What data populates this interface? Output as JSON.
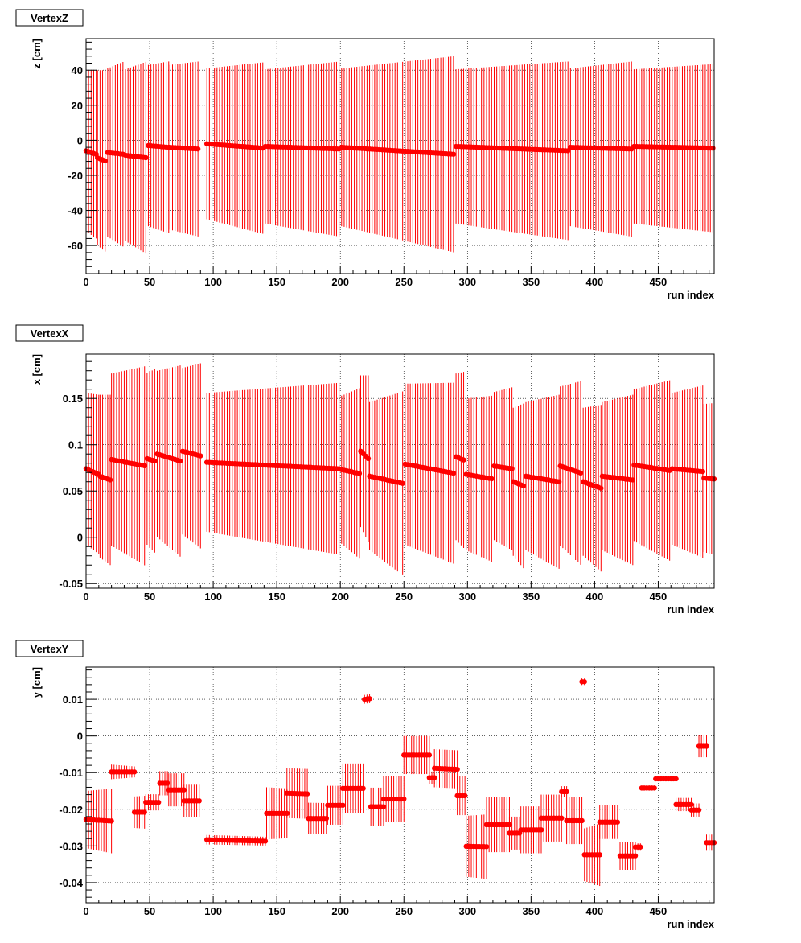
{
  "colors": {
    "marker": "#ff0000",
    "frame": "#000000",
    "grid": "#000000",
    "background": "#ffffff"
  },
  "chart_data": [
    {
      "type": "scatter",
      "title": "VertexZ",
      "xlabel": "run index",
      "ylabel": "z [cm]",
      "xlim": [
        0,
        494
      ],
      "ylim": [
        -76,
        58
      ],
      "x_ticks": [
        0,
        50,
        100,
        150,
        200,
        250,
        300,
        350,
        400,
        450
      ],
      "y_ticks": [
        -60,
        -40,
        -20,
        0,
        20,
        40
      ],
      "grid": true,
      "error_bars": "symmetric",
      "segments": [
        {
          "x": [
            0,
            8
          ],
          "y": [
            -6,
            -8
          ],
          "err": [
            46,
            48
          ]
        },
        {
          "x": [
            9,
            16
          ],
          "y": [
            -10,
            -12
          ],
          "err": [
            50,
            52
          ]
        },
        {
          "x": [
            17,
            30
          ],
          "y": [
            -7,
            -8
          ],
          "err": [
            48,
            53
          ]
        },
        {
          "x": [
            31,
            48
          ],
          "y": [
            -8.5,
            -10
          ],
          "err": [
            49,
            55
          ]
        },
        {
          "x": [
            49,
            65
          ],
          "y": [
            -3,
            -4
          ],
          "err": [
            46,
            49
          ]
        },
        {
          "x": [
            66,
            89
          ],
          "y": [
            -4,
            -5
          ],
          "err": [
            47,
            50
          ]
        },
        {
          "x": [
            95,
            140
          ],
          "y": [
            -2,
            -4.5
          ],
          "err": [
            43,
            49
          ]
        },
        {
          "x": [
            141,
            200
          ],
          "y": [
            -3.5,
            -5
          ],
          "err": [
            44,
            50
          ]
        },
        {
          "x": [
            201,
            290
          ],
          "y": [
            -4,
            -8
          ],
          "err": [
            45,
            56
          ]
        },
        {
          "x": [
            291,
            380
          ],
          "y": [
            -3.5,
            -6
          ],
          "err": [
            44,
            51
          ]
        },
        {
          "x": [
            381,
            430
          ],
          "y": [
            -4,
            -5
          ],
          "err": [
            45,
            50
          ]
        },
        {
          "x": [
            431,
            494
          ],
          "y": [
            -3.5,
            -4.5
          ],
          "err": [
            44,
            48
          ]
        }
      ]
    },
    {
      "type": "scatter",
      "title": "VertexX",
      "xlabel": "run index",
      "ylabel": "x [cm]",
      "xlim": [
        0,
        494
      ],
      "ylim": [
        -0.055,
        0.198
      ],
      "x_ticks": [
        0,
        50,
        100,
        150,
        200,
        250,
        300,
        350,
        400,
        450
      ],
      "y_ticks": [
        -0.05,
        0,
        0.05,
        0.1,
        0.15
      ],
      "y_tick_labels": [
        "-0.05",
        "0",
        "0.05",
        "0.1",
        "0.15"
      ],
      "grid": true,
      "error_bars": "symmetric",
      "segments": [
        {
          "x": [
            0,
            10
          ],
          "y": [
            0.074,
            0.068
          ],
          "err": [
            0.082,
            0.086
          ]
        },
        {
          "x": [
            11,
            19
          ],
          "y": [
            0.066,
            0.062
          ],
          "err": [
            0.088,
            0.092
          ]
        },
        {
          "x": [
            20,
            47
          ],
          "y": [
            0.084,
            0.077
          ],
          "err": [
            0.093,
            0.108
          ]
        },
        {
          "x": [
            48,
            55
          ],
          "y": [
            0.085,
            0.082
          ],
          "err": [
            0.093,
            0.1
          ]
        },
        {
          "x": [
            56,
            75
          ],
          "y": [
            0.09,
            0.082
          ],
          "err": [
            0.09,
            0.104
          ]
        },
        {
          "x": [
            76,
            90
          ],
          "y": [
            0.093,
            0.088
          ],
          "err": [
            0.09,
            0.1
          ]
        },
        {
          "x": [
            95,
            200
          ],
          "y": [
            0.081,
            0.074
          ],
          "err": [
            0.075,
            0.093
          ]
        },
        {
          "x": [
            201,
            215
          ],
          "y": [
            0.073,
            0.069
          ],
          "err": [
            0.08,
            0.092
          ]
        },
        {
          "x": [
            216,
            222
          ],
          "y": [
            0.093,
            0.085
          ],
          "err": [
            0.082,
            0.09
          ]
        },
        {
          "x": [
            223,
            250
          ],
          "y": [
            0.066,
            0.058
          ],
          "err": [
            0.08,
            0.1
          ]
        },
        {
          "x": [
            251,
            290
          ],
          "y": [
            0.079,
            0.069
          ],
          "err": [
            0.087,
            0.098
          ]
        },
        {
          "x": [
            291,
            298
          ],
          "y": [
            0.087,
            0.083
          ],
          "err": [
            0.09,
            0.096
          ]
        },
        {
          "x": [
            299,
            320
          ],
          "y": [
            0.068,
            0.063
          ],
          "err": [
            0.082,
            0.09
          ]
        },
        {
          "x": [
            321,
            335
          ],
          "y": [
            0.077,
            0.074
          ],
          "err": [
            0.08,
            0.088
          ]
        },
        {
          "x": [
            336,
            345
          ],
          "y": [
            0.06,
            0.055
          ],
          "err": [
            0.08,
            0.09
          ]
        },
        {
          "x": [
            346,
            372
          ],
          "y": [
            0.066,
            0.06
          ],
          "err": [
            0.08,
            0.094
          ]
        },
        {
          "x": [
            373,
            390
          ],
          "y": [
            0.077,
            0.069
          ],
          "err": [
            0.086,
            0.1
          ]
        },
        {
          "x": [
            391,
            405
          ],
          "y": [
            0.06,
            0.053
          ],
          "err": [
            0.08,
            0.09
          ]
        },
        {
          "x": [
            406,
            430
          ],
          "y": [
            0.066,
            0.062
          ],
          "err": [
            0.08,
            0.092
          ]
        },
        {
          "x": [
            431,
            460
          ],
          "y": [
            0.078,
            0.072
          ],
          "err": [
            0.082,
            0.098
          ]
        },
        {
          "x": [
            461,
            485
          ],
          "y": [
            0.074,
            0.071
          ],
          "err": [
            0.082,
            0.093
          ]
        },
        {
          "x": [
            486,
            494
          ],
          "y": [
            0.064,
            0.063
          ],
          "err": [
            0.08,
            0.082
          ]
        }
      ]
    },
    {
      "type": "scatter",
      "title": "VertexY",
      "xlabel": "run index",
      "ylabel": "y [cm]",
      "xlim": [
        0,
        494
      ],
      "ylim": [
        -0.0455,
        0.0188
      ],
      "x_ticks": [
        0,
        50,
        100,
        150,
        200,
        250,
        300,
        350,
        400,
        450
      ],
      "y_ticks": [
        -0.04,
        -0.03,
        -0.02,
        -0.01,
        0,
        0.01
      ],
      "y_tick_labels": [
        "-0.04",
        "-0.03",
        "-0.02",
        "-0.01",
        "0",
        "0.01"
      ],
      "grid": true,
      "error_bars": "symmetric",
      "segments": [
        {
          "x": [
            0,
            20
          ],
          "y": [
            -0.0228,
            -0.0232
          ],
          "err": [
            0.0078,
            0.0088
          ]
        },
        {
          "x": [
            20,
            38
          ],
          "y": [
            -0.0098,
            -0.0098
          ],
          "err": [
            0.002,
            0.0015
          ]
        },
        {
          "x": [
            38,
            47
          ],
          "y": [
            -0.0208,
            -0.0208
          ],
          "err": [
            0.0043,
            0.0045
          ]
        },
        {
          "x": [
            47,
            58
          ],
          "y": [
            -0.0181,
            -0.0181
          ],
          "err": [
            0.0022,
            0.0022
          ]
        },
        {
          "x": [
            58,
            65
          ],
          "y": [
            -0.0129,
            -0.0129
          ],
          "err": [
            0.0033,
            0.0033
          ]
        },
        {
          "x": [
            65,
            77
          ],
          "y": [
            -0.0147,
            -0.0147
          ],
          "err": [
            0.0045,
            0.0045
          ]
        },
        {
          "x": [
            77,
            89
          ],
          "y": [
            -0.0177,
            -0.0177
          ],
          "err": [
            0.0044,
            0.0044
          ]
        },
        {
          "x": [
            95,
            142
          ],
          "y": [
            -0.0283,
            -0.0287
          ],
          "err": [
            0.0013,
            0.0012
          ]
        },
        {
          "x": [
            142,
            158
          ],
          "y": [
            -0.0211,
            -0.0211
          ],
          "err": [
            0.0071,
            0.0068
          ]
        },
        {
          "x": [
            158,
            175
          ],
          "y": [
            -0.0156,
            -0.0158
          ],
          "err": [
            0.0068,
            0.0068
          ]
        },
        {
          "x": [
            175,
            190
          ],
          "y": [
            -0.0225,
            -0.0225
          ],
          "err": [
            0.0043,
            0.0042
          ]
        },
        {
          "x": [
            190,
            202
          ],
          "y": [
            -0.0189,
            -0.0189
          ],
          "err": [
            0.0053,
            0.0053
          ]
        },
        {
          "x": [
            202,
            219
          ],
          "y": [
            -0.0143,
            -0.0143
          ],
          "err": [
            0.0068,
            0.0068
          ]
        },
        {
          "x": [
            219,
            224
          ],
          "y": [
            0.01,
            0.0102
          ],
          "err": [
            0.0012,
            0.0012
          ]
        },
        {
          "x": [
            224,
            234
          ],
          "y": [
            -0.0193,
            -0.0193
          ],
          "err": [
            0.0052,
            0.0052
          ]
        },
        {
          "x": [
            234,
            250
          ],
          "y": [
            -0.0172,
            -0.0172
          ],
          "err": [
            0.0062,
            0.0062
          ]
        },
        {
          "x": [
            250,
            270
          ],
          "y": [
            -0.0052,
            -0.0052
          ],
          "err": [
            0.0052,
            0.0052
          ]
        },
        {
          "x": [
            270,
            274
          ],
          "y": [
            -0.0114,
            -0.0114
          ],
          "err": [
            0.0017,
            0.0017
          ]
        },
        {
          "x": [
            274,
            292
          ],
          "y": [
            -0.0088,
            -0.0091
          ],
          "err": [
            0.0052,
            0.0052
          ]
        },
        {
          "x": [
            292,
            299
          ],
          "y": [
            -0.0163,
            -0.0163
          ],
          "err": [
            0.0053,
            0.0053
          ]
        },
        {
          "x": [
            299,
            315
          ],
          "y": [
            -0.0301,
            -0.0302
          ],
          "err": [
            0.0083,
            0.0088
          ]
        },
        {
          "x": [
            315,
            333
          ],
          "y": [
            -0.0242,
            -0.0242
          ],
          "err": [
            0.0075,
            0.0075
          ]
        },
        {
          "x": [
            333,
            342
          ],
          "y": [
            -0.0265,
            -0.0265
          ],
          "err": [
            0.0045,
            0.0045
          ]
        },
        {
          "x": [
            342,
            358
          ],
          "y": [
            -0.0256,
            -0.0256
          ],
          "err": [
            0.0064,
            0.0064
          ]
        },
        {
          "x": [
            358,
            374
          ],
          "y": [
            -0.0224,
            -0.0224
          ],
          "err": [
            0.0064,
            0.0064
          ]
        },
        {
          "x": [
            374,
            378
          ],
          "y": [
            -0.0152,
            -0.0152
          ],
          "err": [
            0.0015,
            0.0015
          ]
        },
        {
          "x": [
            378,
            390
          ],
          "y": [
            -0.0231,
            -0.0231
          ],
          "err": [
            0.0064,
            0.0064
          ]
        },
        {
          "x": [
            390,
            392
          ],
          "y": [
            0.0148,
            0.0148
          ],
          "err": [
            0.0009,
            0.0009
          ]
        },
        {
          "x": [
            392,
            404
          ],
          "y": [
            -0.0324,
            -0.0324
          ],
          "err": [
            0.0072,
            0.0085
          ]
        },
        {
          "x": [
            404,
            418
          ],
          "y": [
            -0.0235,
            -0.0235
          ],
          "err": [
            0.0046,
            0.0046
          ]
        },
        {
          "x": [
            420,
            432
          ],
          "y": [
            -0.0327,
            -0.0327
          ],
          "err": [
            0.0038,
            0.0038
          ]
        },
        {
          "x": [
            432,
            436
          ],
          "y": [
            -0.0303,
            -0.0303
          ],
          "err": [
            0.001,
            0.001
          ]
        },
        {
          "x": [
            437,
            448
          ],
          "y": [
            -0.0142,
            -0.0142
          ],
          "err": [
            0.0001,
            0.0001
          ]
        },
        {
          "x": [
            448,
            464
          ],
          "y": [
            -0.0117,
            -0.0117
          ],
          "err": [
            0.0001,
            0.0001
          ]
        },
        {
          "x": [
            464,
            476
          ],
          "y": [
            -0.0187,
            -0.0187
          ],
          "err": [
            0.0018,
            0.0018
          ]
        },
        {
          "x": [
            476,
            482
          ],
          "y": [
            -0.0202,
            -0.0202
          ],
          "err": [
            0.0018,
            0.0018
          ]
        },
        {
          "x": [
            482,
            488
          ],
          "y": [
            -0.0028,
            -0.0028
          ],
          "err": [
            0.003,
            0.003
          ]
        },
        {
          "x": [
            488,
            494
          ],
          "y": [
            -0.0291,
            -0.0291
          ],
          "err": [
            0.0022,
            0.0022
          ]
        }
      ]
    }
  ]
}
